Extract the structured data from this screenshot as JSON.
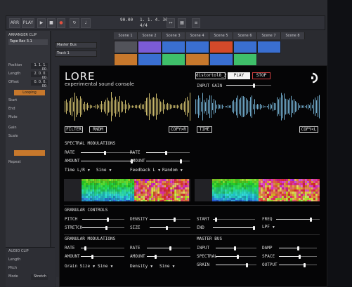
{
  "daw": {
    "toolbar": {
      "buttons": [
        "ARR",
        "PLAY"
      ],
      "tempo": "90.00",
      "position": "1. 1. 4. 36",
      "time_sig": "4/4"
    },
    "clip_panel": {
      "title": "ARRANGER CLIP",
      "clip_name": "Tape Rec 3.1",
      "rows": [
        {
          "label": "Position",
          "value": "1. 1. 1. 00"
        },
        {
          "label": "Length",
          "value": "2. 0. 0. 00"
        },
        {
          "label": "Offset",
          "value": "0. 0. 0. 00"
        }
      ],
      "looping": "Looping",
      "start": "Start",
      "end": "End",
      "mute": "Mute",
      "gain": "Gain",
      "scale": "Scale",
      "repeat": "Repeat",
      "audio_clip": "AUDIO CLIP",
      "length": "Length",
      "pitch": "Pitch",
      "mode": "Mode",
      "mode_value": "Stretch"
    },
    "tracks": [
      "Master Bus",
      "Track 1",
      "Track 2",
      "Track 3",
      "Track 4",
      "Track 5",
      "Track 6",
      "Track 7"
    ],
    "scenes": [
      "Scene 1",
      "Scene 2",
      "Scene 3",
      "Scene 4",
      "Scene 5",
      "Scene 6",
      "Scene 7",
      "Scene 8"
    ],
    "colors": {
      "orange": "#c7782c",
      "purple": "#7b5bd6",
      "blue": "#3a6fd1",
      "green": "#3fbf6a",
      "red": "#d44a2a",
      "grey": "#52535a"
    }
  },
  "plugin": {
    "title": "LORE",
    "subtitle": "experimental sound console",
    "preset": "distortol8_2",
    "play": "PLAY",
    "stop": "STOP",
    "input_gain": "INPUT GAIN",
    "input_gain_value": 0.62,
    "left_buttons": {
      "filter": "FILTER",
      "rndm": "RNDM",
      "copy": "COPY>R"
    },
    "right_buttons": {
      "time": "TIME",
      "copy": "COPY<L"
    },
    "spectral": {
      "header": "SPECTRAL MODULATIONS",
      "rate_label": "RATE",
      "amount_label": "AMOUNT",
      "left": {
        "rate": 0.45,
        "amount": 0.97,
        "sel1": "Time L/R",
        "sel2": "Sine"
      },
      "right": {
        "rate": 0.46,
        "amount": 0.82,
        "sel1": "Feedback L",
        "sel2": "Random"
      }
    },
    "granular_controls": {
      "header": "GRANULAR CONTROLS",
      "pitch": "PITCH",
      "pitch_value": 0.62,
      "stretch": "STRETCH",
      "stretch_value": 0.58,
      "density": "DENSITY",
      "density_value": 0.62,
      "size": "SIZE",
      "size_value": 0.42,
      "start": "START",
      "start_value": 0.05,
      "end": "END",
      "end_value": 1.0,
      "freq": "FREQ",
      "freq_value": 0.82,
      "filter_type": "LPF"
    },
    "granular_mod": {
      "header": "GRANULAR MODULATIONS",
      "rate": "RATE",
      "amount": "AMOUNT",
      "left": {
        "rate": 0.08,
        "amount": 0.25,
        "sel1": "Grain Size",
        "sel2": "Sine"
      },
      "right": {
        "rate": 0.55,
        "amount": 0.18,
        "sel1": "Density",
        "sel2": "Sine"
      }
    },
    "master_bus": {
      "header": "MASTER BUS",
      "input": "INPUT",
      "input_value": 0.48,
      "spectral": "SPECTRAL",
      "spectral_value": 0.55,
      "grain": "GRAIN",
      "grain_value": 0.78,
      "damp": "DAMP",
      "damp_value": 0.5,
      "space": "SPACE",
      "space_value": 0.55,
      "output": "OUTPUT",
      "output_value": 0.68
    },
    "colors": {
      "wave_left": "#c9b86a",
      "wave_right": "#6fa9c9",
      "accent_stop": "#d04040"
    }
  }
}
